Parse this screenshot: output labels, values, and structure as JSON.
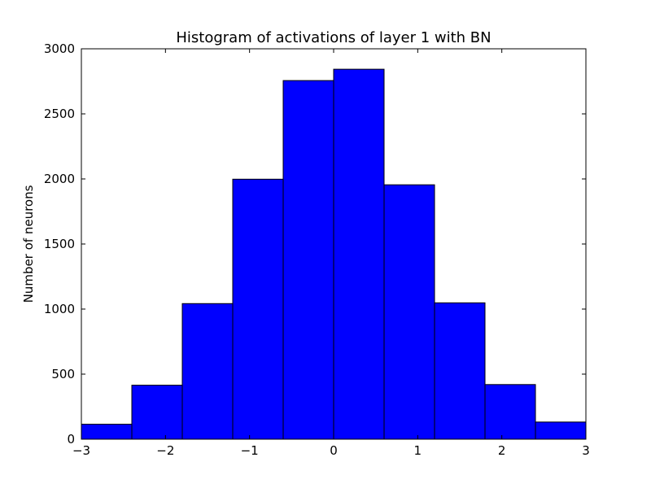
{
  "chart_data": {
    "type": "bar",
    "title": "Histogram of activations of layer 1  with BN",
    "xlabel": "",
    "ylabel": "Number of neurons",
    "xlim": [
      -3,
      3
    ],
    "ylim": [
      0,
      3000
    ],
    "grid": false,
    "bar_color": "#0000ff",
    "edge_color": "#000000",
    "bins": [
      {
        "x0": -3.0,
        "x1": -2.4,
        "value": 115
      },
      {
        "x0": -2.4,
        "x1": -1.8,
        "value": 415
      },
      {
        "x0": -1.8,
        "x1": -1.2,
        "value": 1042
      },
      {
        "x0": -1.2,
        "x1": -0.6,
        "value": 1998
      },
      {
        "x0": -0.6,
        "x1": 0.0,
        "value": 2756
      },
      {
        "x0": 0.0,
        "x1": 0.6,
        "value": 2843
      },
      {
        "x0": 0.6,
        "x1": 1.2,
        "value": 1955
      },
      {
        "x0": 1.2,
        "x1": 1.8,
        "value": 1048
      },
      {
        "x0": 1.8,
        "x1": 2.4,
        "value": 420
      },
      {
        "x0": 2.4,
        "x1": 3.0,
        "value": 132
      }
    ],
    "x_ticks": [
      {
        "value": -3,
        "label": "−3"
      },
      {
        "value": -2,
        "label": "−2"
      },
      {
        "value": -1,
        "label": "−1"
      },
      {
        "value": 0,
        "label": "0"
      },
      {
        "value": 1,
        "label": "1"
      },
      {
        "value": 2,
        "label": "2"
      },
      {
        "value": 3,
        "label": "3"
      }
    ],
    "y_ticks": [
      {
        "value": 0,
        "label": "0"
      },
      {
        "value": 500,
        "label": "500"
      },
      {
        "value": 1000,
        "label": "1000"
      },
      {
        "value": 1500,
        "label": "1500"
      },
      {
        "value": 2000,
        "label": "2000"
      },
      {
        "value": 2500,
        "label": "2500"
      },
      {
        "value": 3000,
        "label": "3000"
      }
    ]
  }
}
